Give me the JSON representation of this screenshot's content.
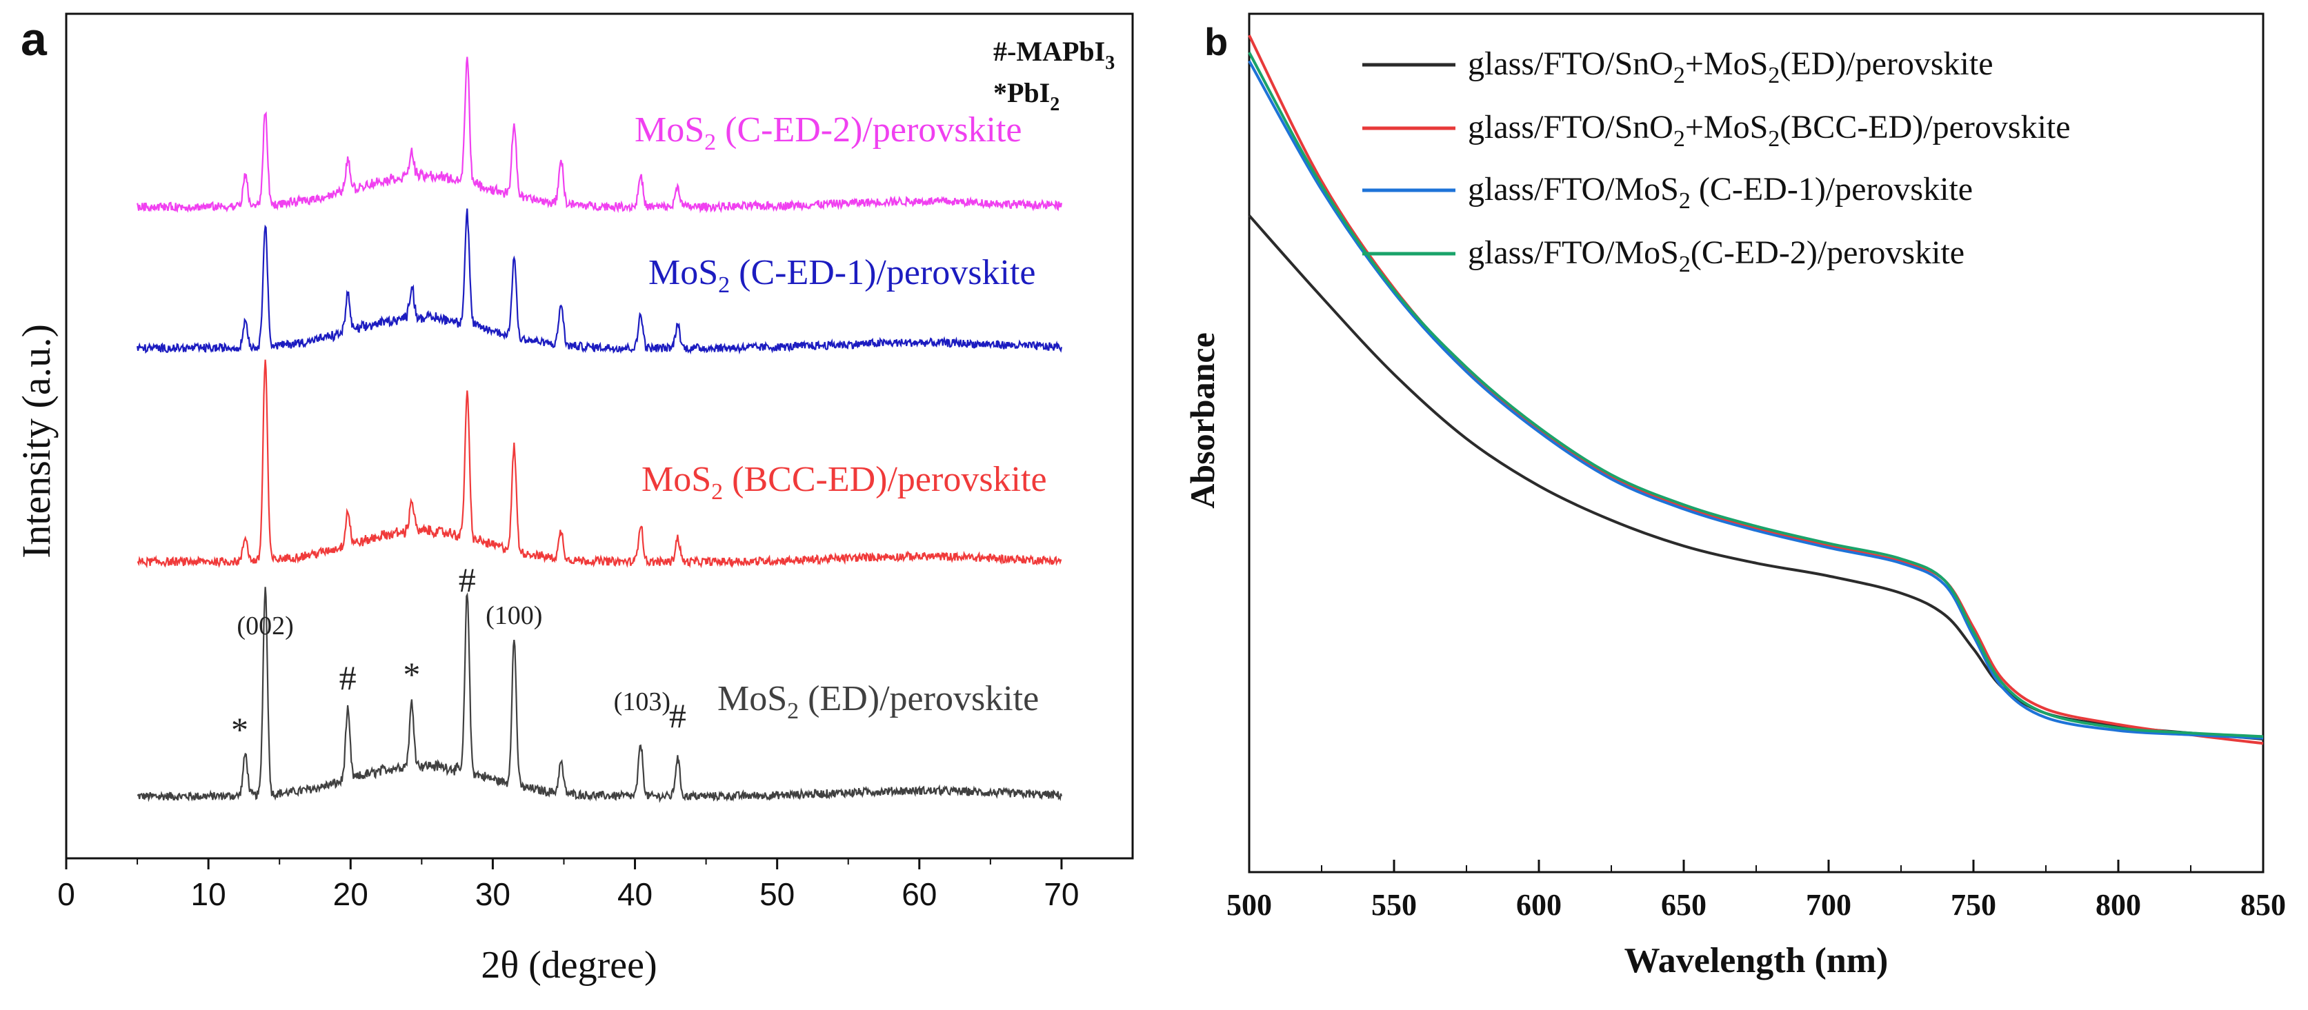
{
  "chart_data": [
    {
      "panel": "a",
      "type": "line",
      "title": "",
      "xlabel": "2θ (degree)",
      "ylabel": "Intensity (a.u.)",
      "xlim": [
        0,
        75
      ],
      "xticks": [
        0,
        10,
        20,
        30,
        40,
        50,
        60,
        70
      ],
      "legend_note": [
        "#-MAPbI",
        "3",
        "*PbI",
        "2"
      ],
      "series": [
        {
          "name": "MoS2 (ED)/perovskite",
          "label_main": "MoS",
          "label_sub": "2",
          "label_rest": " (ED)/perovskite",
          "color": "#404040",
          "offset": 0,
          "noise": 6
        },
        {
          "name": "MoS2 (BCC-ED)/perovskite",
          "label_main": "MoS",
          "label_sub": "2",
          "label_rest": " (BCC-ED)/perovskite",
          "color": "#f03a3a",
          "offset": 340,
          "noise": 6
        },
        {
          "name": "MoS2 (C-ED-1)/perovskite",
          "label_main": "MoS",
          "label_sub": "2",
          "label_rest": " (C-ED-1)/perovskite",
          "color": "#1c1cc0",
          "offset": 650,
          "noise": 6
        },
        {
          "name": "MoS2 (C-ED-2)/perovskite",
          "label_main": "MoS",
          "label_sub": "2",
          "label_rest": " (C-ED-2)/perovskite",
          "color": "#f040f0",
          "offset": 855,
          "noise": 6
        }
      ],
      "peaks": [
        {
          "x": 12.6,
          "h": [
            60,
            35,
            40,
            45
          ]
        },
        {
          "x": 14.0,
          "h": [
            300,
            290,
            180,
            135
          ]
        },
        {
          "x": 19.8,
          "h": [
            100,
            50,
            55,
            45
          ]
        },
        {
          "x": 24.3,
          "h": [
            90,
            45,
            45,
            35
          ]
        },
        {
          "x": 28.2,
          "h": [
            260,
            210,
            160,
            180
          ]
        },
        {
          "x": 31.5,
          "h": [
            210,
            150,
            115,
            105
          ]
        },
        {
          "x": 34.8,
          "h": [
            45,
            40,
            60,
            65
          ]
        },
        {
          "x": 40.4,
          "h": [
            75,
            55,
            50,
            45
          ]
        },
        {
          "x": 43.0,
          "h": [
            55,
            35,
            35,
            30
          ]
        }
      ],
      "annotations": [
        {
          "text": "(002)",
          "x": 14.0,
          "style": "paren"
        },
        {
          "text": "#",
          "x": 28.2,
          "style": "mark"
        },
        {
          "text": "(100)",
          "x": 31.5,
          "style": "paren"
        },
        {
          "text": "*",
          "x": 12.2,
          "style": "mark"
        },
        {
          "text": "#",
          "x": 19.8,
          "style": "mark"
        },
        {
          "text": "*",
          "x": 24.3,
          "style": "mark"
        },
        {
          "text": "(103)",
          "x": 40.5,
          "style": "paren"
        },
        {
          "text": "#",
          "x": 43.0,
          "style": "mark"
        }
      ]
    },
    {
      "panel": "b",
      "type": "line",
      "title": "",
      "xlabel": "Wavelength (nm)",
      "ylabel": "Absorbance",
      "xlim": [
        500,
        850
      ],
      "ylim": [
        0,
        1
      ],
      "xticks": [
        500,
        550,
        600,
        650,
        700,
        750,
        800,
        850
      ],
      "series": [
        {
          "name": "glass/FTO/SnO2+MoS2(ED)/perovskite",
          "label_parts": [
            "glass/FTO/SnO",
            "2",
            "+MoS",
            "2",
            "(ED)/perovskite"
          ],
          "color": "#2b2b2b",
          "x": [
            500,
            525,
            550,
            575,
            600,
            625,
            650,
            675,
            700,
            725,
            740,
            750,
            760,
            775,
            800,
            825,
            850
          ],
          "y": [
            0.765,
            0.67,
            0.58,
            0.505,
            0.45,
            0.41,
            0.38,
            0.36,
            0.345,
            0.325,
            0.3,
            0.26,
            0.215,
            0.185,
            0.17,
            0.162,
            0.155
          ]
        },
        {
          "name": "glass/FTO/SnO2+MoS2(BCC-ED)/perovskite",
          "label_parts": [
            "glass/FTO/SnO",
            "2",
            "+MoS",
            "2",
            "(BCC-ED)/perovskite"
          ],
          "color": "#e83a3a",
          "x": [
            500,
            525,
            550,
            575,
            600,
            625,
            650,
            675,
            700,
            725,
            740,
            750,
            760,
            775,
            800,
            825,
            850
          ],
          "y": [
            0.975,
            0.805,
            0.68,
            0.585,
            0.515,
            0.46,
            0.425,
            0.4,
            0.38,
            0.362,
            0.34,
            0.285,
            0.225,
            0.19,
            0.172,
            0.16,
            0.15
          ]
        },
        {
          "name": "glass/FTO/MoS2 (C-ED-1)/perovskite",
          "label_parts": [
            "glass/FTO/MoS",
            "2",
            " (C-ED-1)/perovskite",
            "",
            ""
          ],
          "color": "#1e73d8",
          "x": [
            500,
            525,
            550,
            575,
            600,
            625,
            650,
            675,
            700,
            725,
            740,
            750,
            760,
            775,
            800,
            825,
            850
          ],
          "y": [
            0.945,
            0.795,
            0.675,
            0.583,
            0.513,
            0.458,
            0.423,
            0.398,
            0.378,
            0.36,
            0.335,
            0.275,
            0.215,
            0.18,
            0.165,
            0.16,
            0.156
          ]
        },
        {
          "name": "glass/FTO/MoS2(C-ED-2)/perovskite",
          "label_parts": [
            "glass/FTO/MoS",
            "2",
            "(C-ED-2)/perovskite",
            "",
            ""
          ],
          "color": "#1aa36a",
          "x": [
            500,
            525,
            550,
            575,
            600,
            625,
            650,
            675,
            700,
            725,
            740,
            750,
            760,
            775,
            800,
            825,
            850
          ],
          "y": [
            0.955,
            0.8,
            0.678,
            0.588,
            0.518,
            0.463,
            0.428,
            0.403,
            0.383,
            0.365,
            0.34,
            0.28,
            0.22,
            0.185,
            0.168,
            0.162,
            0.158
          ]
        }
      ]
    }
  ],
  "panel_labels": {
    "a": "a",
    "b": "b"
  }
}
